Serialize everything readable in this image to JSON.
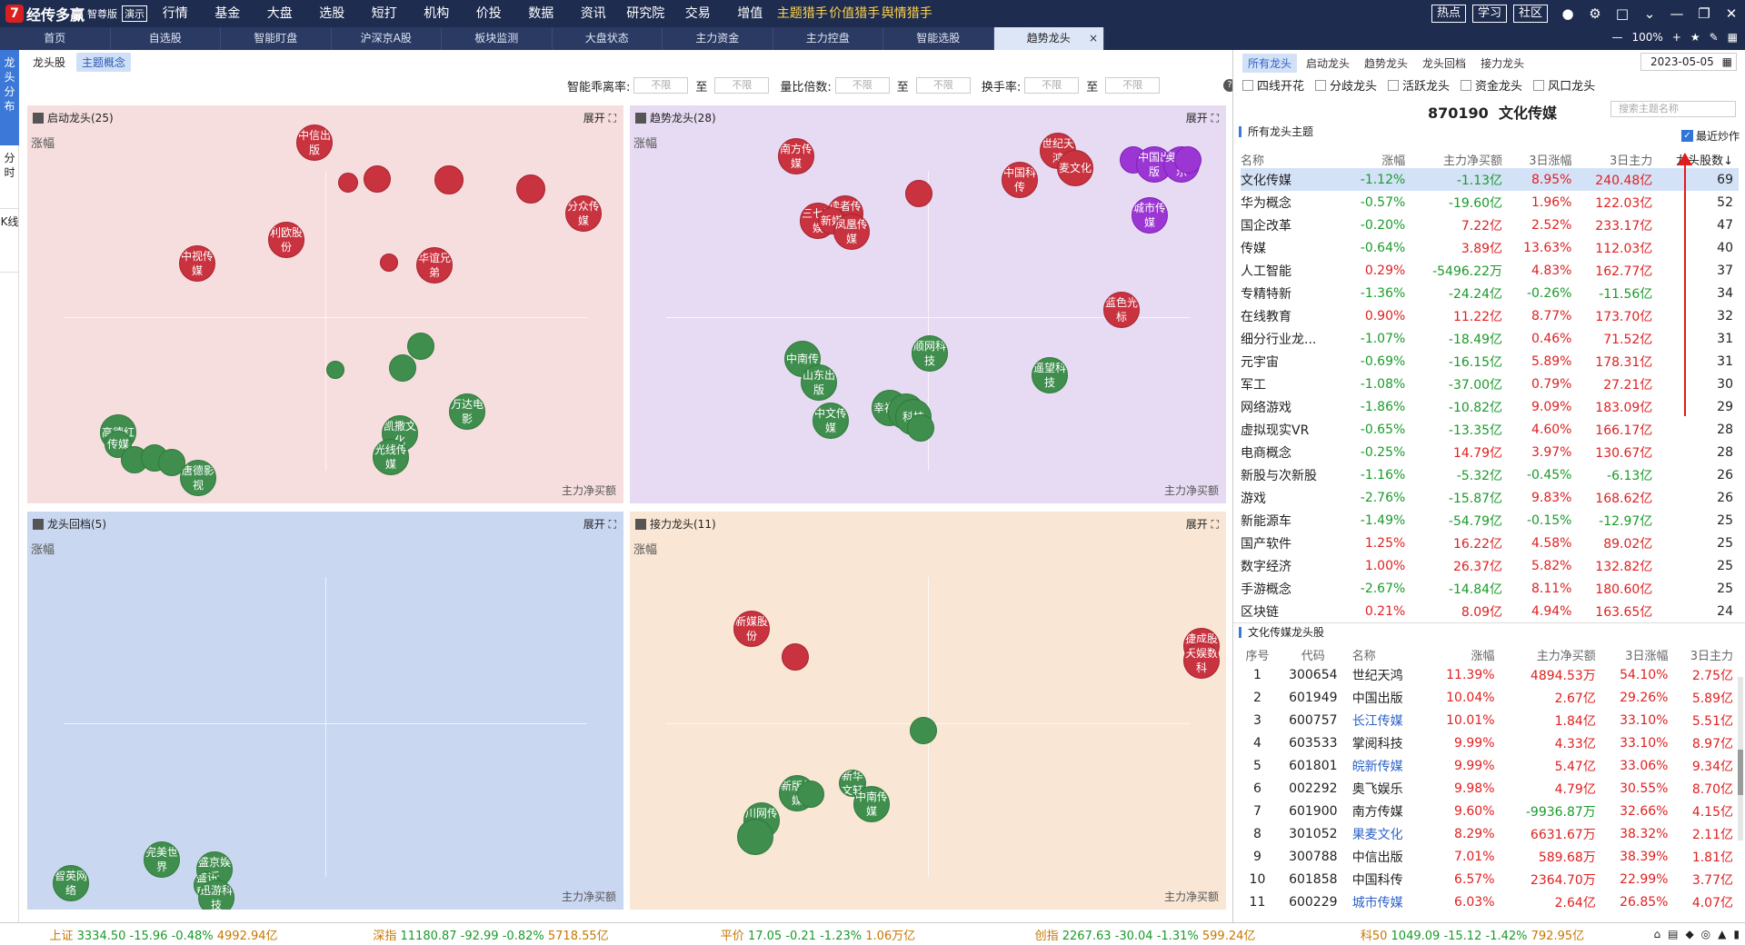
{
  "app": {
    "logo_mark": "7",
    "name": "经传多赢",
    "edition": "智尊版",
    "demo_badge": "演示"
  },
  "menu": [
    "行情",
    "基金",
    "大盘",
    "选股",
    "短打",
    "机构",
    "价投",
    "数据",
    "资讯",
    "研究院",
    "交易",
    "增值",
    "主题猎手",
    "价值猎手",
    "舆情猎手"
  ],
  "menu_highlight": [
    12,
    13,
    14
  ],
  "top_buttons": [
    "热点",
    "学习",
    "社区"
  ],
  "tabs": [
    "首页",
    "自选股",
    "智能盯盘",
    "沪深京A股",
    "板块监测",
    "大盘状态",
    "主力资金",
    "主力控盘",
    "智能选股",
    "趋势龙头"
  ],
  "zoom": "100%",
  "side_nav": [
    "龙头分布",
    "分时",
    "K线"
  ],
  "sub_tabs": [
    "龙头股",
    "主题概念"
  ],
  "filters": [
    {
      "label": "智能乖离率:",
      "from": "不限",
      "to": "不限"
    },
    {
      "label": "量比倍数:",
      "from": "不限",
      "to": "不限"
    },
    {
      "label": "换手率:",
      "from": "不限",
      "to": "不限"
    }
  ],
  "filter_to": "至",
  "quadrants": [
    {
      "title": "启动龙头(25)",
      "expand": "展开",
      "ylabel": "涨幅",
      "xlabel": "主力净买额",
      "bg": "#f7dede",
      "bubbles": [
        {
          "t": "中信出版",
          "c": "red"
        },
        {
          "t": "",
          "c": "red"
        },
        {
          "t": "",
          "c": "red"
        },
        {
          "t": "",
          "c": "red"
        },
        {
          "t": "",
          "c": "red"
        },
        {
          "t": "分众传媒",
          "c": "red"
        },
        {
          "t": "利欧股份",
          "c": "red"
        },
        {
          "t": "中视传媒",
          "c": "red"
        },
        {
          "t": "华谊兄弟",
          "c": "red"
        },
        {
          "t": "",
          "c": "red"
        },
        {
          "t": "",
          "c": "grn"
        },
        {
          "t": "",
          "c": "grn"
        },
        {
          "t": "",
          "c": "grn"
        },
        {
          "t": "万达电影",
          "c": "grn"
        },
        {
          "t": "凯撒文化",
          "c": "grn"
        },
        {
          "t": "光线传媒",
          "c": "grn"
        },
        {
          "t": "高德红",
          "c": "grn"
        },
        {
          "t": "传媒",
          "c": "grn"
        },
        {
          "t": "",
          "c": "grn"
        },
        {
          "t": "",
          "c": "grn"
        },
        {
          "t": "",
          "c": "grn"
        },
        {
          "t": "唐德影视",
          "c": "grn"
        }
      ]
    },
    {
      "title": "趋势龙头(28)",
      "expand": "展开",
      "ylabel": "涨幅",
      "xlabel": "主力净买额",
      "bg": "#e7dbf3",
      "bubbles": [
        {
          "t": "南方传媒",
          "c": "red"
        },
        {
          "t": "世纪天鸿",
          "c": "red"
        },
        {
          "t": "麦文化",
          "c": "red"
        },
        {
          "t": "中国科传",
          "c": "red"
        },
        {
          "t": "",
          "c": "red"
        },
        {
          "t": "三七互娱",
          "c": "red"
        },
        {
          "t": "读者传媒",
          "c": "red"
        },
        {
          "t": "新媒",
          "c": "red"
        },
        {
          "t": "凤凰传媒",
          "c": "red"
        },
        {
          "t": "蓝色光标",
          "c": "red"
        },
        {
          "t": "",
          "c": "pur"
        },
        {
          "t": "中国出版",
          "c": "pur"
        },
        {
          "t": "奥飞娱乐",
          "c": "pur"
        },
        {
          "t": "",
          "c": "pur"
        },
        {
          "t": "城市传媒",
          "c": "pur"
        },
        {
          "t": "顺网科技",
          "c": "grn"
        },
        {
          "t": "中南传",
          "c": "grn"
        },
        {
          "t": "山东出版",
          "c": "grn"
        },
        {
          "t": "遥望科技",
          "c": "grn"
        },
        {
          "t": "中文传媒",
          "c": "grn"
        },
        {
          "t": "幸福海",
          "c": "grn"
        },
        {
          "t": "",
          "c": "grn"
        },
        {
          "t": "科技",
          "c": "grn"
        },
        {
          "t": "",
          "c": "grn"
        }
      ]
    },
    {
      "title": "龙头回档(5)",
      "expand": "展开",
      "ylabel": "涨幅",
      "xlabel": "主力净买额",
      "bg": "#c9d7f1",
      "bubbles": [
        {
          "t": "完美世界",
          "c": "grn"
        },
        {
          "t": "盛京娱乐",
          "c": "grn"
        },
        {
          "t": "盛讯科技",
          "c": "grn"
        },
        {
          "t": "迅游科技",
          "c": "grn"
        },
        {
          "t": "智英网络",
          "c": "grn"
        }
      ]
    },
    {
      "title": "接力龙头(11)",
      "expand": "展开",
      "ylabel": "涨幅",
      "xlabel": "主力净买额",
      "bg": "#f9e6d4",
      "bubbles": [
        {
          "t": "新媒股份",
          "c": "red"
        },
        {
          "t": "",
          "c": "red"
        },
        {
          "t": "捷成股份",
          "c": "red"
        },
        {
          "t": "天娱数科",
          "c": "red"
        },
        {
          "t": "",
          "c": "grn"
        },
        {
          "t": "新版传媒",
          "c": "grn"
        },
        {
          "t": "",
          "c": "grn"
        },
        {
          "t": "新华文轩",
          "c": "grn"
        },
        {
          "t": "中南传媒",
          "c": "grn"
        },
        {
          "t": "川网传媒",
          "c": "grn"
        },
        {
          "t": "",
          "c": "grn"
        }
      ]
    }
  ],
  "right": {
    "tabs": [
      "所有龙头",
      "启动龙头",
      "趋势龙头",
      "龙头回档",
      "接力龙头"
    ],
    "date": "2023-05-05",
    "checks": [
      "四线开花",
      "分歧龙头",
      "活跃龙头",
      "资金龙头",
      "风口龙头"
    ],
    "code": "870190",
    "name": "文化传媒",
    "search_placeholder": "搜索主题名称",
    "sec1": "所有龙头主题",
    "recent": "最近炒作",
    "theme_cols": [
      "名称",
      "涨幅",
      "主力净买额",
      "3日涨幅",
      "3日主力",
      "龙头股数↓"
    ],
    "themes": [
      [
        "文化传媒",
        "-1.12%",
        "-1.13亿",
        "8.95%",
        "240.48亿",
        "69"
      ],
      [
        "华为概念",
        "-0.57%",
        "-19.60亿",
        "1.96%",
        "122.03亿",
        "52"
      ],
      [
        "国企改革",
        "-0.20%",
        "7.22亿",
        "2.52%",
        "233.17亿",
        "47"
      ],
      [
        "传媒",
        "-0.64%",
        "3.89亿",
        "13.63%",
        "112.03亿",
        "40"
      ],
      [
        "人工智能",
        "0.29%",
        "-5496.22万",
        "4.83%",
        "162.77亿",
        "37"
      ],
      [
        "专精特新",
        "-1.36%",
        "-24.24亿",
        "-0.26%",
        "-11.56亿",
        "34"
      ],
      [
        "在线教育",
        "0.90%",
        "11.22亿",
        "8.77%",
        "173.70亿",
        "32"
      ],
      [
        "细分行业龙...",
        "-1.07%",
        "-18.49亿",
        "0.46%",
        "71.52亿",
        "31"
      ],
      [
        "元宇宙",
        "-0.69%",
        "-16.15亿",
        "5.89%",
        "178.31亿",
        "31"
      ],
      [
        "军工",
        "-1.08%",
        "-37.00亿",
        "0.79%",
        "27.21亿",
        "30"
      ],
      [
        "网络游戏",
        "-1.86%",
        "-10.82亿",
        "9.09%",
        "183.09亿",
        "29"
      ],
      [
        "虚拟现实VR",
        "-0.65%",
        "-13.35亿",
        "4.60%",
        "166.17亿",
        "28"
      ],
      [
        "电商概念",
        "-0.25%",
        "14.79亿",
        "3.97%",
        "130.67亿",
        "28"
      ],
      [
        "新股与次新股",
        "-1.16%",
        "-5.32亿",
        "-0.45%",
        "-6.13亿",
        "26"
      ],
      [
        "游戏",
        "-2.76%",
        "-15.87亿",
        "9.83%",
        "168.62亿",
        "26"
      ],
      [
        "新能源车",
        "-1.49%",
        "-54.79亿",
        "-0.15%",
        "-12.97亿",
        "25"
      ],
      [
        "国产软件",
        "1.25%",
        "16.22亿",
        "4.58%",
        "89.02亿",
        "25"
      ],
      [
        "数字经济",
        "1.00%",
        "26.37亿",
        "5.82%",
        "132.82亿",
        "25"
      ],
      [
        "手游概念",
        "-2.67%",
        "-14.84亿",
        "8.11%",
        "180.60亿",
        "25"
      ],
      [
        "区块链",
        "0.21%",
        "8.09亿",
        "4.94%",
        "163.65亿",
        "24"
      ]
    ],
    "sec2": "文化传媒龙头股",
    "leader_cols": [
      "序号",
      "代码",
      "名称",
      "涨幅",
      "主力净买额",
      "3日涨幅",
      "3日主力"
    ],
    "leaders": [
      [
        "1",
        "300654",
        "世纪天鸿",
        "11.39%",
        "4894.53万",
        "54.10%",
        "2.75亿"
      ],
      [
        "2",
        "601949",
        "中国出版",
        "10.04%",
        "2.67亿",
        "29.26%",
        "5.89亿"
      ],
      [
        "3",
        "600757",
        "长江传媒",
        "10.01%",
        "1.84亿",
        "33.10%",
        "5.51亿"
      ],
      [
        "4",
        "603533",
        "掌阅科技",
        "9.99%",
        "4.33亿",
        "33.10%",
        "8.97亿"
      ],
      [
        "5",
        "601801",
        "皖新传媒",
        "9.99%",
        "5.47亿",
        "33.06%",
        "9.34亿"
      ],
      [
        "6",
        "002292",
        "奥飞娱乐",
        "9.98%",
        "4.79亿",
        "30.55%",
        "8.70亿"
      ],
      [
        "7",
        "601900",
        "南方传媒",
        "9.60%",
        "-9936.87万",
        "32.66%",
        "4.15亿"
      ],
      [
        "8",
        "301052",
        "果麦文化",
        "8.29%",
        "6631.67万",
        "38.32%",
        "2.11亿"
      ],
      [
        "9",
        "300788",
        "中信出版",
        "7.01%",
        "589.68万",
        "38.39%",
        "1.81亿"
      ],
      [
        "10",
        "601858",
        "中国科传",
        "6.57%",
        "2364.70万",
        "22.99%",
        "3.77亿"
      ],
      [
        "11",
        "600229",
        "城市传媒",
        "6.03%",
        "2.64亿",
        "26.85%",
        "4.07亿"
      ]
    ],
    "link_rows": [
      2,
      4,
      7,
      10
    ]
  },
  "status": [
    {
      "name": "上证",
      "v": "3334.50",
      "c": "-15.96",
      "p": "-0.48%",
      "a": "4992.94亿"
    },
    {
      "name": "深指",
      "v": "11180.87",
      "c": "-92.99",
      "p": "-0.82%",
      "a": "5718.55亿"
    },
    {
      "name": "平价",
      "v": "17.05",
      "c": "-0.21",
      "p": "-1.23%",
      "a": "1.06万亿"
    },
    {
      "name": "创指",
      "v": "2267.63",
      "c": "-30.04",
      "p": "-1.31%",
      "a": "599.24亿"
    },
    {
      "name": "科50",
      "v": "1049.09",
      "c": "-15.12",
      "p": "-1.42%",
      "a": "792.95亿"
    }
  ]
}
